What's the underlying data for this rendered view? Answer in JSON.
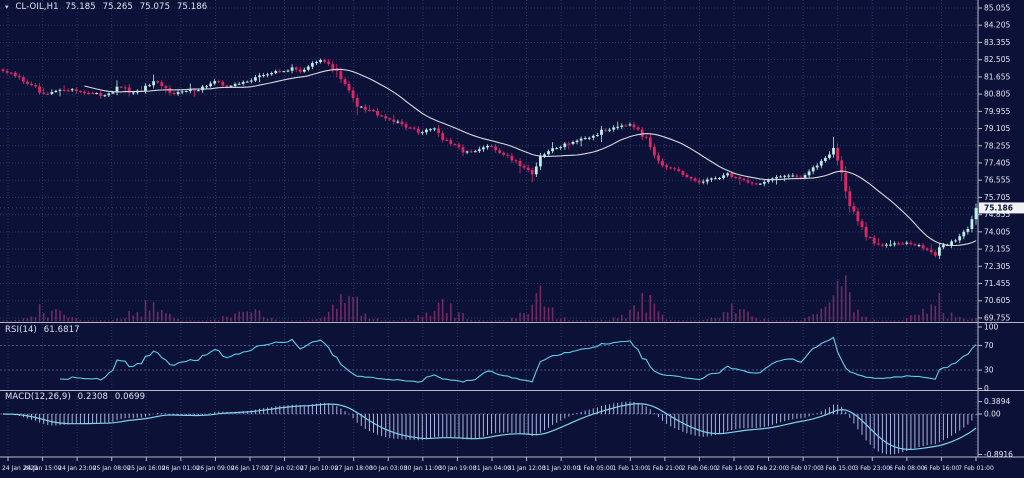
{
  "header": {
    "symbol": "CL-OIL,H1",
    "open": "75.185",
    "high": "75.265",
    "low": "75.075",
    "close": "75.186"
  },
  "colors": {
    "background": "#0c1137",
    "grid": "#2b3466",
    "bull": "#b9f0ec",
    "bear": "#e02766",
    "ma_line": "#d8d9df",
    "volume": "#732a60",
    "rsi_line": "#5ecfe8",
    "level_line": "#49538a",
    "macd_histogram": "#aab3e0",
    "macd_signal": "#7fd3ea",
    "separator": "#b6bac8",
    "axis_text": "#e6e9f5",
    "bid_line": "#93a0c6",
    "price_box_bg": "#f2f3f7",
    "price_box_text": "#0b1033"
  },
  "chart_data": {
    "type": "candlestick",
    "title": "CL-OIL,H1 75.185 75.265 75.075 75.186",
    "timeframe": "H1",
    "bars": 240,
    "grid": true,
    "price_axis": {
      "top_label": 85.055,
      "bottom_label": 69.755,
      "step": 0.85,
      "decimals": 3,
      "current_price": 75.186,
      "current_price_label": "75.186"
    },
    "time_labels": [
      "24 Jan 2023",
      "24 Jan 15:00",
      "24 Jan 23:00",
      "25 Jan 08:00",
      "25 Jan 16:00",
      "26 Jan 01:00",
      "26 Jan 09:00",
      "26 Jan 17:00",
      "27 Jan 02:00",
      "27 Jan 10:00",
      "27 Jan 18:00",
      "30 Jan 03:00",
      "30 Jan 11:00",
      "30 Jan 19:00",
      "31 Jan 04:00",
      "31 Jan 12:00",
      "31 Jan 20:00",
      "1 Feb 05:00",
      "1 Feb 13:00",
      "1 Feb 21:00",
      "2 Feb 06:00",
      "2 Feb 14:00",
      "2 Feb 22:00",
      "3 Feb 07:00",
      "3 Feb 15:00",
      "3 Feb 23:00",
      "6 Feb 08:00",
      "6 Feb 16:00",
      "7 Feb 01:00"
    ],
    "price_anchors": [
      [
        0,
        81.95
      ],
      [
        3,
        81.7
      ],
      [
        6,
        81.35
      ],
      [
        10,
        80.7
      ],
      [
        13,
        80.95
      ],
      [
        16,
        81.05
      ],
      [
        20,
        80.9
      ],
      [
        24,
        80.75
      ],
      [
        27,
        80.95
      ],
      [
        29,
        81.15
      ],
      [
        32,
        80.85
      ],
      [
        34,
        81.0
      ],
      [
        37,
        81.35
      ],
      [
        40,
        81.05
      ],
      [
        42,
        80.85
      ],
      [
        45,
        80.95
      ],
      [
        48,
        81.05
      ],
      [
        52,
        81.4
      ],
      [
        55,
        81.2
      ],
      [
        58,
        81.3
      ],
      [
        61,
        81.55
      ],
      [
        64,
        81.75
      ],
      [
        67,
        81.9
      ],
      [
        71,
        82.05
      ],
      [
        73,
        81.95
      ],
      [
        75,
        82.2
      ],
      [
        78,
        82.45
      ],
      [
        80,
        82.3
      ],
      [
        82,
        81.9
      ],
      [
        84,
        81.2
      ],
      [
        87,
        80.35
      ],
      [
        89,
        80.1
      ],
      [
        91,
        79.95
      ],
      [
        94,
        79.65
      ],
      [
        97,
        79.4
      ],
      [
        100,
        79.15
      ],
      [
        102,
        78.9
      ],
      [
        104,
        79.05
      ],
      [
        106,
        79.15
      ],
      [
        108,
        78.6
      ],
      [
        110,
        78.35
      ],
      [
        112,
        78.1
      ],
      [
        115,
        77.9
      ],
      [
        117,
        78.05
      ],
      [
        119,
        78.25
      ],
      [
        121,
        78.05
      ],
      [
        123,
        77.85
      ],
      [
        126,
        77.5
      ],
      [
        128,
        77.2
      ],
      [
        130,
        76.9
      ],
      [
        131,
        77.3
      ],
      [
        133,
        77.85
      ],
      [
        136,
        78.2
      ],
      [
        140,
        78.45
      ],
      [
        144,
        78.65
      ],
      [
        147,
        78.95
      ],
      [
        151,
        79.25
      ],
      [
        154,
        79.35
      ],
      [
        156,
        79.1
      ],
      [
        158,
        78.55
      ],
      [
        160,
        77.9
      ],
      [
        162,
        77.35
      ],
      [
        164,
        77.1
      ],
      [
        167,
        76.75
      ],
      [
        171,
        76.45
      ],
      [
        174,
        76.6
      ],
      [
        178,
        76.85
      ],
      [
        182,
        76.55
      ],
      [
        185,
        76.35
      ],
      [
        189,
        76.6
      ],
      [
        193,
        76.85
      ],
      [
        196,
        76.7
      ],
      [
        199,
        77.1
      ],
      [
        202,
        77.75
      ],
      [
        204,
        78.15
      ],
      [
        206,
        76.9
      ],
      [
        208,
        75.3
      ],
      [
        210,
        74.5
      ],
      [
        212,
        73.8
      ],
      [
        214,
        73.45
      ],
      [
        216,
        73.3
      ],
      [
        219,
        73.5
      ],
      [
        222,
        73.45
      ],
      [
        225,
        73.3
      ],
      [
        227,
        73.15
      ],
      [
        229,
        72.85
      ],
      [
        231,
        73.3
      ],
      [
        233,
        73.5
      ],
      [
        235,
        73.75
      ],
      [
        237,
        74.3
      ],
      [
        239,
        75.186
      ]
    ],
    "spikes": [
      {
        "bar": 204,
        "high_extra": 0.4
      },
      {
        "bar": 130,
        "low_extra": 0.28
      },
      {
        "bar": 37,
        "high_extra": 0.22
      },
      {
        "bar": 151,
        "high_extra": 0.15
      }
    ],
    "session_cycle_bars": 24,
    "indicators": {
      "ma": {
        "period": 21
      },
      "rsi": {
        "name": "RSI(14)",
        "value": "61.6817",
        "period": 14,
        "levels": [
          70,
          30
        ],
        "scale_values": [
          100,
          70,
          30,
          0
        ],
        "scale_labels": [
          "100",
          "70",
          "30",
          "0"
        ]
      },
      "macd": {
        "name": "MACD(12,26,9)",
        "value_macd": "0.2308",
        "value_signal": "0.0699",
        "fast": 12,
        "slow": 26,
        "signal": 9,
        "scale_labels": [
          "0.3894",
          "0.00",
          "-0.8916"
        ]
      }
    }
  }
}
